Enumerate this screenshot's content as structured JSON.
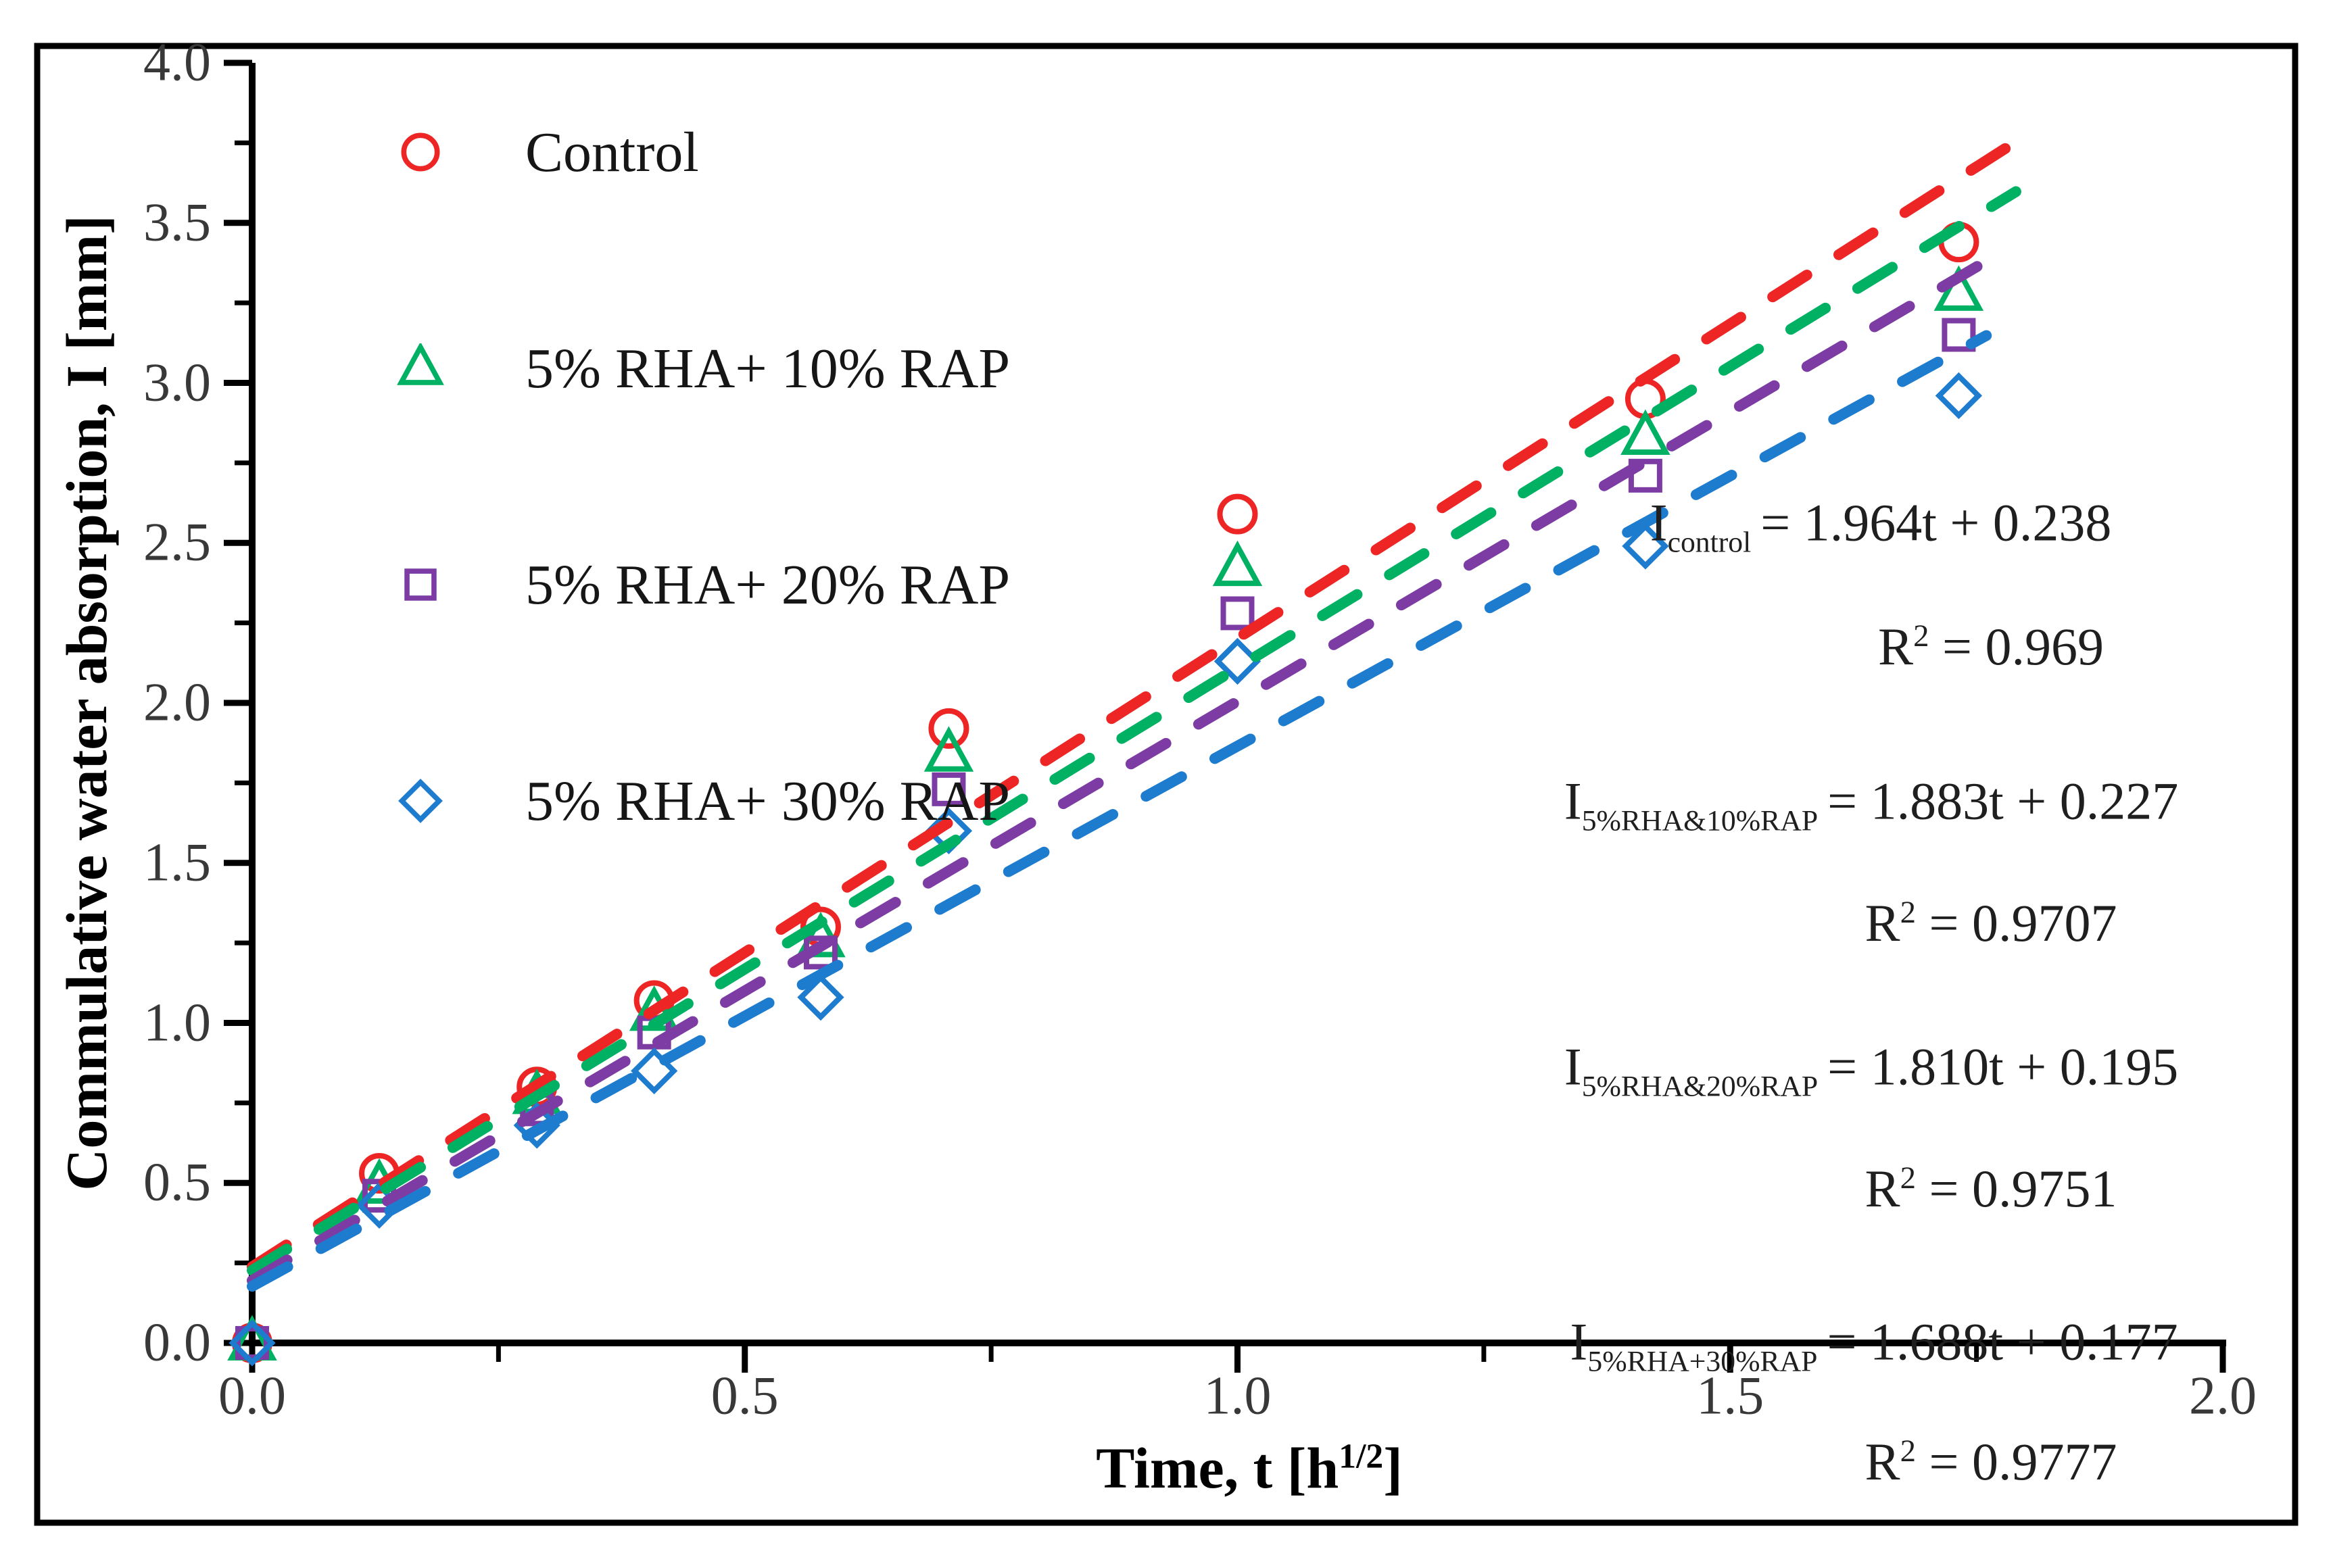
{
  "axes": {
    "y_title": "Commulative water absorption, I [mm]",
    "x_title_main": "Time, t [h",
    "x_title_sup": "1/2",
    "x_title_close": "]"
  },
  "legend": {
    "items": [
      {
        "label": "Control",
        "marker": "circle",
        "color": "#ED2524"
      },
      {
        "label": "5% RHA+ 10% RAP",
        "marker": "triangle",
        "color": "#00B163"
      },
      {
        "label": "5% RHA+ 20% RAP",
        "marker": "square",
        "color": "#7D3CA3"
      },
      {
        "label": "5% RHA+ 30% RAP",
        "marker": "diamond",
        "color": "#1E7CCF"
      }
    ]
  },
  "equations": [
    {
      "lead": "I",
      "sub": "control",
      "rhs": "= 1.964t + 0.238",
      "r2_lead": "R",
      "r2_sup": "2",
      "r2_rhs": " = 0.969"
    },
    {
      "lead": "I",
      "sub": "5%RHA&10%RAP",
      "rhs": "= 1.883t + 0.227",
      "r2_lead": "R",
      "r2_sup": "2",
      "r2_rhs": " = 0.9707"
    },
    {
      "lead": "I",
      "sub": "5%RHA&20%RAP",
      "rhs": "= 1.810t + 0.195",
      "r2_lead": "R",
      "r2_sup": "2",
      "r2_rhs": " = 0.9751"
    },
    {
      "lead": "I",
      "sub": "5%RHA+30%RAP",
      "rhs": "= 1.688t + 0.177",
      "r2_lead": "R",
      "r2_sup": "2",
      "r2_rhs": " = 0.9777"
    }
  ],
  "chart_data": {
    "type": "scatter",
    "title": "",
    "xlabel": "Time, t [h^1/2]",
    "ylabel": "Commulative water absorption, I [mm]",
    "xlim": [
      0,
      2
    ],
    "ylim": [
      0,
      4
    ],
    "x_ticks": [
      0,
      0.5,
      1.0,
      1.5,
      2.0
    ],
    "y_ticks": [
      0,
      0.5,
      1.0,
      1.5,
      2.0,
      2.5,
      3.0,
      3.5,
      4.0
    ],
    "x_minor_ticks": [
      0.25,
      0.75,
      1.25,
      1.75
    ],
    "y_minor_ticks": [
      0.25,
      0.75,
      1.25,
      1.75,
      2.25,
      2.75,
      3.25,
      3.75
    ],
    "grid": false,
    "legend_position": "upper-left-inside",
    "x": [
      0,
      0.129,
      0.289,
      0.408,
      0.577,
      0.707,
      1.0,
      1.414,
      1.732
    ],
    "series": [
      {
        "name": "Control",
        "marker": "circle",
        "color": "#ED2524",
        "values": [
          0,
          0.53,
          0.8,
          1.07,
          1.3,
          1.92,
          2.59,
          2.95,
          3.44
        ],
        "trend": {
          "slope": 1.964,
          "intercept": 0.238,
          "r2": 0.969,
          "x_start": 0,
          "x_end": 1.8
        }
      },
      {
        "name": "5% RHA+ 10% RAP",
        "marker": "triangle",
        "color": "#00B163",
        "values": [
          0,
          0.49,
          0.77,
          1.03,
          1.26,
          1.84,
          2.42,
          2.83,
          3.28
        ],
        "trend": {
          "slope": 1.883,
          "intercept": 0.227,
          "r2": 0.9707,
          "x_start": 0,
          "x_end": 1.79
        }
      },
      {
        "name": "5% RHA+ 20% RAP",
        "marker": "square",
        "color": "#7D3CA3",
        "values": [
          0,
          0.46,
          0.73,
          0.97,
          1.22,
          1.73,
          2.28,
          2.71,
          3.15
        ],
        "trend": {
          "slope": 1.81,
          "intercept": 0.195,
          "r2": 0.9751,
          "x_start": 0,
          "x_end": 1.78
        }
      },
      {
        "name": "5% RHA+ 30% RAP",
        "marker": "diamond",
        "color": "#1E7CCF",
        "values": [
          0,
          0.43,
          0.68,
          0.85,
          1.08,
          1.6,
          2.13,
          2.49,
          2.96
        ],
        "trend": {
          "slope": 1.688,
          "intercept": 0.177,
          "r2": 0.9777,
          "x_start": 0,
          "x_end": 1.76
        }
      }
    ]
  }
}
